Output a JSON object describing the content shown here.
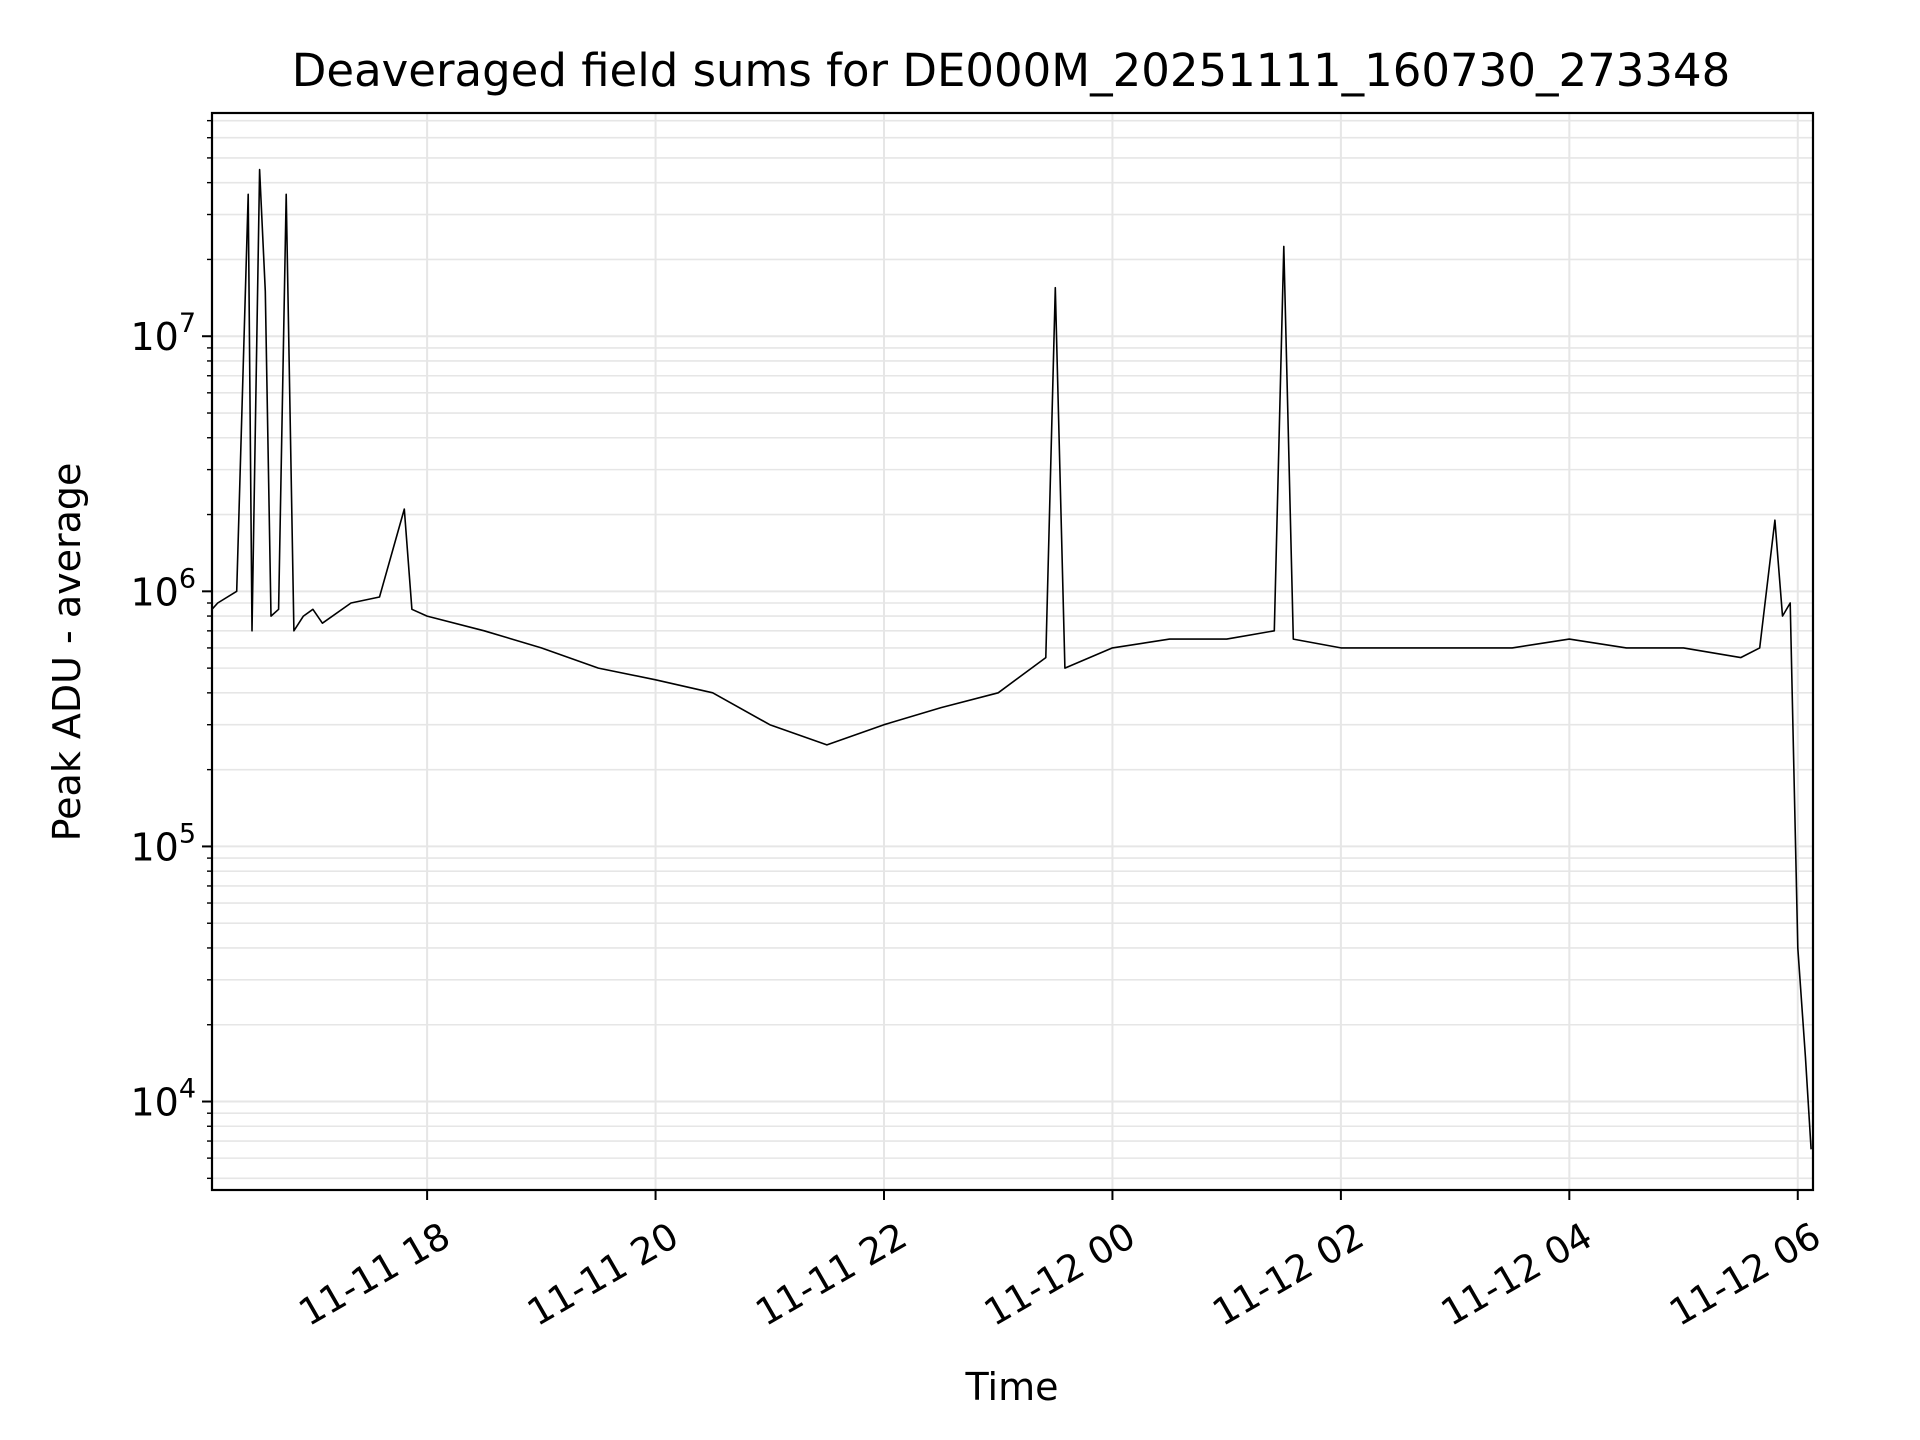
{
  "chart_data": {
    "type": "line",
    "title": "Deaveraged field sums for DE000M_20251111_160730_273348",
    "xlabel": "Time",
    "ylabel": "Peak ADU - average",
    "yscale": "log",
    "ylim": [
      4500,
      75000000
    ],
    "xlim": [
      "2025-11-11 16:07",
      "2025-11-12 06:08"
    ],
    "grid": true,
    "line_color": "#000000",
    "grid_color": "#e6e6e6",
    "x_ticks": [
      {
        "value": "2025-11-11 18:00",
        "label": "11-11 18"
      },
      {
        "value": "2025-11-11 20:00",
        "label": "11-11 20"
      },
      {
        "value": "2025-11-11 22:00",
        "label": "11-11 22"
      },
      {
        "value": "2025-11-12 00:00",
        "label": "11-12 00"
      },
      {
        "value": "2025-11-12 02:00",
        "label": "11-12 02"
      },
      {
        "value": "2025-11-12 04:00",
        "label": "11-12 04"
      },
      {
        "value": "2025-11-12 06:00",
        "label": "11-12 06"
      }
    ],
    "y_ticks": [
      {
        "value": 10000,
        "base": "10",
        "exp": "4"
      },
      {
        "value": 100000,
        "base": "10",
        "exp": "5"
      },
      {
        "value": 1000000,
        "base": "10",
        "exp": "6"
      },
      {
        "value": 10000000,
        "base": "10",
        "exp": "7"
      }
    ],
    "series": [
      {
        "x": [
          "2025-11-11 16:07",
          "2025-11-11 16:10",
          "2025-11-11 16:20",
          "2025-11-11 16:26",
          "2025-11-11 16:28",
          "2025-11-11 16:32",
          "2025-11-11 16:35",
          "2025-11-11 16:38",
          "2025-11-11 16:42",
          "2025-11-11 16:46",
          "2025-11-11 16:50",
          "2025-11-11 16:55",
          "2025-11-11 17:00",
          "2025-11-11 17:05",
          "2025-11-11 17:20",
          "2025-11-11 17:35",
          "2025-11-11 17:48",
          "2025-11-11 17:52",
          "2025-11-11 18:00",
          "2025-11-11 18:30",
          "2025-11-11 19:00",
          "2025-11-11 19:30",
          "2025-11-11 20:00",
          "2025-11-11 20:30",
          "2025-11-11 21:00",
          "2025-11-11 21:30",
          "2025-11-11 22:00",
          "2025-11-11 22:30",
          "2025-11-11 23:00",
          "2025-11-11 23:25",
          "2025-11-11 23:30",
          "2025-11-11 23:35",
          "2025-11-12 00:00",
          "2025-11-12 00:30",
          "2025-11-12 01:00",
          "2025-11-12 01:25",
          "2025-11-12 01:30",
          "2025-11-12 01:35",
          "2025-11-12 02:00",
          "2025-11-12 02:30",
          "2025-11-12 03:00",
          "2025-11-12 03:30",
          "2025-11-12 04:00",
          "2025-11-12 04:30",
          "2025-11-12 05:00",
          "2025-11-12 05:30",
          "2025-11-12 05:40",
          "2025-11-12 05:48",
          "2025-11-12 05:52",
          "2025-11-12 05:56",
          "2025-11-12 06:00",
          "2025-11-12 06:04",
          "2025-11-12 06:07"
        ],
        "y": [
          850000,
          900000,
          1000000,
          36000000,
          700000,
          45000000,
          15000000,
          800000,
          850000,
          36000000,
          700000,
          800000,
          850000,
          750000,
          900000,
          950000,
          2100000,
          850000,
          800000,
          700000,
          600000,
          500000,
          450000,
          400000,
          300000,
          250000,
          300000,
          350000,
          400000,
          550000,
          15500000,
          500000,
          600000,
          650000,
          650000,
          700000,
          22500000,
          650000,
          600000,
          600000,
          600000,
          600000,
          650000,
          600000,
          600000,
          550000,
          600000,
          1900000,
          800000,
          900000,
          40000,
          15000,
          6500
        ]
      }
    ]
  }
}
